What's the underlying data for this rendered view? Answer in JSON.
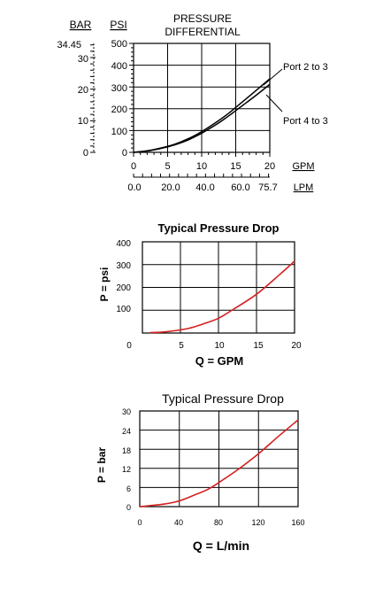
{
  "chart_data": [
    {
      "type": "line",
      "title": "PRESSURE DIFFERENTIAL",
      "title_lines": [
        "PRESSURE",
        "DIFFERENTIAL"
      ],
      "left_axis_label": "BAR",
      "ylabel": "PSI",
      "xlabel": "GPM",
      "secondary_xlabel": "LPM",
      "x_ticks": [
        "0",
        "5",
        "10",
        "15",
        "20"
      ],
      "lpm_ticks": [
        "0.0",
        "20.0",
        "40.0",
        "60.0",
        "75.7"
      ],
      "y_ticks": [
        "0",
        "100",
        "200",
        "300",
        "400",
        "500"
      ],
      "bar_ticks": [
        "0",
        "10",
        "20",
        "30",
        "34.45"
      ],
      "xlim": [
        0,
        20
      ],
      "ylim": [
        0,
        500
      ],
      "grid": true,
      "series": [
        {
          "name": "Port 2 to 3",
          "x": [
            0,
            2,
            4,
            6,
            8,
            10,
            12,
            14,
            16,
            18,
            20
          ],
          "values": [
            0,
            7,
            20,
            37,
            62,
            95,
            135,
            180,
            232,
            284,
            338
          ]
        },
        {
          "name": "Port 4 to 3",
          "x": [
            0,
            2,
            4,
            6,
            8,
            10,
            12,
            14,
            16,
            18,
            20
          ],
          "values": [
            0,
            6,
            18,
            34,
            57,
            88,
            125,
            168,
            215,
            262,
            312
          ]
        }
      ]
    },
    {
      "type": "line",
      "title": "Typical Pressure Drop",
      "ylabel": "P = psi",
      "xlabel": "Q = GPM",
      "x_ticks": [
        "0",
        "5",
        "10",
        "15",
        "20"
      ],
      "y_ticks": [
        "100",
        "200",
        "300",
        "400"
      ],
      "xlim": [
        0,
        20
      ],
      "ylim": [
        0,
        400
      ],
      "grid": true,
      "color": "#d42020",
      "series": [
        {
          "x": [
            1,
            3,
            6,
            8,
            10,
            12,
            15,
            18,
            20
          ],
          "values": [
            2,
            5,
            20,
            40,
            65,
            105,
            170,
            255,
            315
          ]
        }
      ]
    },
    {
      "type": "line",
      "title": "Typical Pressure Drop",
      "ylabel": "P = bar",
      "xlabel": "Q = L/min",
      "x_ticks": [
        "0",
        "40",
        "80",
        "120",
        "160"
      ],
      "y_ticks": [
        "0",
        "6",
        "12",
        "18",
        "24",
        "30"
      ],
      "xlim": [
        0,
        160
      ],
      "ylim": [
        0,
        30
      ],
      "grid": true,
      "color": "#d42020",
      "series": [
        {
          "x": [
            0,
            10,
            25,
            40,
            55,
            70,
            85,
            100,
            120,
            140,
            160
          ],
          "values": [
            0,
            0.3,
            0.8,
            1.8,
            3.6,
            5.6,
            8.6,
            11.8,
            16.6,
            22,
            27.2
          ]
        }
      ]
    }
  ]
}
